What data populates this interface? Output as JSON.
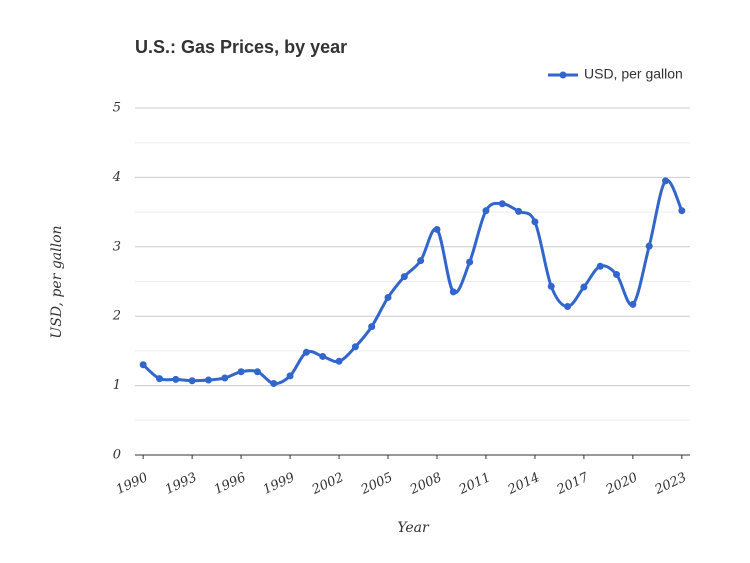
{
  "chart_data": {
    "type": "line",
    "title": "U.S.: Gas Prices, by year",
    "x_label": "Year",
    "y_label": "USD, per gallon",
    "x": [
      1990,
      1991,
      1992,
      1993,
      1994,
      1995,
      1996,
      1997,
      1998,
      1999,
      2000,
      2001,
      2002,
      2003,
      2004,
      2005,
      2006,
      2007,
      2008,
      2009,
      2010,
      2011,
      2012,
      2013,
      2014,
      2015,
      2016,
      2017,
      2018,
      2019,
      2020,
      2021,
      2022,
      2023
    ],
    "series": [
      {
        "name": "USD, per gallon",
        "color": "#3366cc",
        "values": [
          1.3,
          1.1,
          1.09,
          1.07,
          1.08,
          1.11,
          1.2,
          1.2,
          1.03,
          1.14,
          1.48,
          1.42,
          1.35,
          1.56,
          1.85,
          2.27,
          2.57,
          2.8,
          3.25,
          2.35,
          2.78,
          3.52,
          3.62,
          3.51,
          3.36,
          2.43,
          2.14,
          2.42,
          2.72,
          2.6,
          2.17,
          3.01,
          3.95,
          3.52
        ]
      }
    ],
    "xlim": [
      1989.5,
      2023.5
    ],
    "xticks": [
      1990,
      1993,
      1996,
      1999,
      2002,
      2005,
      2008,
      2011,
      2014,
      2017,
      2020,
      2023
    ],
    "ylim": [
      0,
      5
    ],
    "yticks": [
      0,
      1,
      2,
      3,
      4,
      5
    ],
    "grid": true,
    "minor_grid": true,
    "smooth": true,
    "legend": "top-right"
  }
}
